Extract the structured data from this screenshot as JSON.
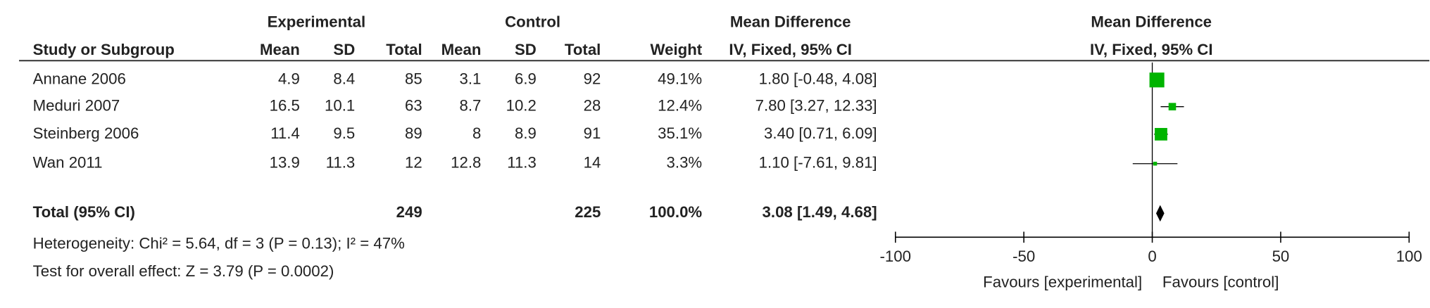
{
  "chart_data": {
    "type": "forest",
    "group_headers": [
      "Experimental",
      "Control"
    ],
    "ci_group_header": "Mean Difference",
    "columns": [
      "Study or Subgroup",
      "Mean",
      "SD",
      "Total",
      "Mean",
      "SD",
      "Total",
      "Weight",
      "IV, Fixed, 95% CI"
    ],
    "plot_title": "Mean Difference",
    "plot_subtitle": "IV, Fixed, 95% CI",
    "studies": [
      {
        "name": "Annane 2006",
        "exp_mean": 4.9,
        "exp_sd": 8.4,
        "exp_total": 85,
        "ctl_mean": 3.1,
        "ctl_sd": 6.9,
        "ctl_total": 92,
        "weight": 49.1,
        "weight_label": "49.1%",
        "md": 1.8,
        "ci_low": -0.48,
        "ci_high": 4.08,
        "ci_label": "1.80 [-0.48, 4.08]"
      },
      {
        "name": "Meduri 2007",
        "exp_mean": 16.5,
        "exp_sd": 10.1,
        "exp_total": 63,
        "ctl_mean": 8.7,
        "ctl_sd": 10.2,
        "ctl_total": 28,
        "weight": 12.4,
        "weight_label": "12.4%",
        "md": 7.8,
        "ci_low": 3.27,
        "ci_high": 12.33,
        "ci_label": "7.80 [3.27, 12.33]"
      },
      {
        "name": "Steinberg 2006",
        "exp_mean": 11.4,
        "exp_sd": 9.5,
        "exp_total": 89,
        "ctl_mean": 8,
        "ctl_sd": 8.9,
        "ctl_total": 91,
        "weight": 35.1,
        "weight_label": "35.1%",
        "md": 3.4,
        "ci_low": 0.71,
        "ci_high": 6.09,
        "ci_label": "3.40 [0.71, 6.09]"
      },
      {
        "name": "Wan 2011",
        "exp_mean": 13.9,
        "exp_sd": 11.3,
        "exp_total": 12,
        "ctl_mean": 12.8,
        "ctl_sd": 11.3,
        "ctl_total": 14,
        "weight": 3.3,
        "weight_label": "3.3%",
        "md": 1.1,
        "ci_low": -7.61,
        "ci_high": 9.81,
        "ci_label": "1.10 [-7.61, 9.81]"
      }
    ],
    "total": {
      "name": "Total (95% CI)",
      "exp_total": 249,
      "ctl_total": 225,
      "weight": 100,
      "weight_label": "100.0%",
      "md": 3.08,
      "ci_low": 1.49,
      "ci_high": 4.68,
      "ci_label": "3.08 [1.49, 4.68]"
    },
    "heterogeneity": "Heterogeneity: Chi² = 5.64, df = 3 (P = 0.13); I² = 47%",
    "overall_effect": "Test for overall effect: Z = 3.79 (P = 0.0002)",
    "xlim": [
      -100,
      100
    ],
    "xticks": [
      -100,
      -50,
      0,
      50,
      100
    ],
    "favours_left": "Favours [experimental]",
    "favours_right": "Favours [control]",
    "square_color": "#00b400",
    "diamond_color": "#000000"
  }
}
